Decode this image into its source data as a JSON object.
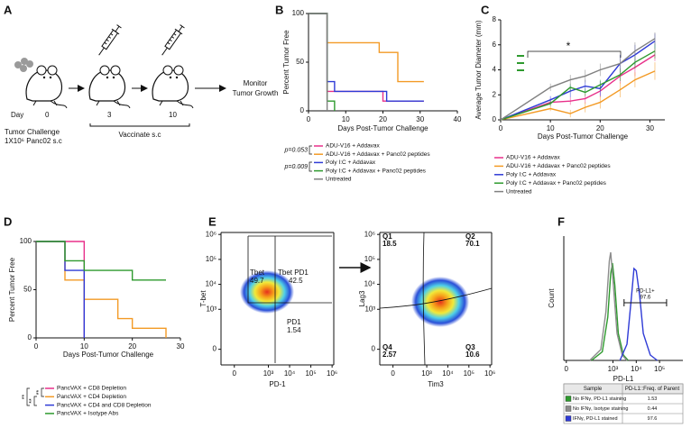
{
  "panel_labels": [
    "A",
    "B",
    "C",
    "D",
    "E",
    "F"
  ],
  "panel_a": {
    "day_label": "Day",
    "days": [
      0,
      3,
      10
    ],
    "challenge": [
      "Tumor Challenge",
      "1X10⁶ Panc02 s.c"
    ],
    "vaccinate": "Vaccinate s.c",
    "monitor": [
      "Monitor",
      "Tumor Growth"
    ]
  },
  "chart_data": [
    {
      "type": "line",
      "ylabel": "Percent Tumor Free",
      "xlabel": "Days Post-Tumor Challenge",
      "xlim": [
        0,
        40
      ],
      "xticks": [
        0,
        10,
        20,
        30,
        40
      ],
      "ylim": [
        0,
        100
      ],
      "yticks": [
        0,
        50,
        100
      ],
      "series": [
        {
          "name": "ADU-V16 + Addavax",
          "color": "#e8308a",
          "x": [
            0,
            5,
            5,
            20,
            20,
            31
          ],
          "values": [
            100,
            100,
            20,
            20,
            10,
            10
          ]
        },
        {
          "name": "ADU-V16 + Addavax + Panc02 peptides",
          "color": "#f39a25",
          "x": [
            0,
            5,
            5,
            19,
            19,
            24,
            24,
            31
          ],
          "values": [
            100,
            100,
            70,
            70,
            60,
            60,
            30,
            30
          ]
        },
        {
          "name": "Poly I:C + Addavax",
          "color": "#2f3bd6",
          "x": [
            0,
            5,
            5,
            7,
            7,
            21,
            21,
            31
          ],
          "values": [
            100,
            100,
            30,
            30,
            20,
            20,
            10,
            10
          ]
        },
        {
          "name": "Poly I:C + Addavax + Panc02 peptides",
          "color": "#2e9a2e",
          "x": [
            0,
            5,
            5,
            7,
            7
          ],
          "values": [
            100,
            100,
            10,
            10,
            0
          ]
        },
        {
          "name": "Untreated",
          "color": "#808080",
          "x": [
            0,
            5,
            5
          ],
          "values": [
            100,
            100,
            0
          ]
        }
      ],
      "annotations": [
        "p=0.053",
        "p=0.009"
      ]
    },
    {
      "type": "line",
      "ylabel": "Average Tumor Diameter (mm)",
      "xlabel": "Days Post-Tumor Challenge",
      "xlim": [
        0,
        33
      ],
      "xticks": [
        0,
        10,
        20,
        30
      ],
      "ylim": [
        0,
        8
      ],
      "yticks": [
        0,
        2,
        4,
        6,
        8
      ],
      "x": [
        0,
        10,
        14,
        17,
        20,
        24,
        27,
        31
      ],
      "series": [
        {
          "name": "ADU-V16 + Addavax",
          "color": "#e8308a",
          "values": [
            0,
            1.4,
            1.5,
            1.7,
            2.3,
            3.5,
            4.2,
            5.2
          ],
          "errors": [
            0,
            0.3,
            0.3,
            0.4,
            0.5,
            0.6,
            0.7,
            0.5
          ]
        },
        {
          "name": "ADU-V16 + Addavax + Panc02 peptides",
          "color": "#f39a25",
          "values": [
            0,
            0.9,
            0.5,
            1.0,
            1.4,
            2.4,
            3.2,
            3.9
          ],
          "errors": [
            0,
            0.2,
            0.3,
            0.4,
            0.5,
            0.6,
            0.6,
            0.7
          ]
        },
        {
          "name": "Poly I:C + Addavax",
          "color": "#2f3bd6",
          "values": [
            0,
            1.6,
            2.3,
            2.7,
            2.5,
            4.5,
            5.2,
            6.3
          ],
          "errors": [
            0,
            0.3,
            0.5,
            0.5,
            0.6,
            0.7,
            0.8,
            0.6
          ]
        },
        {
          "name": "Poly I:C + Addavax + Panc02 peptides",
          "color": "#2e9a2e",
          "values": [
            0,
            1.3,
            2.6,
            2.2,
            2.8,
            3.6,
            4.6,
            5.5
          ],
          "errors": [
            0,
            0.2,
            0.3,
            0.3,
            0.4,
            0.5,
            0.5,
            0.6
          ]
        },
        {
          "name": "Untreated",
          "color": "#808080",
          "values": [
            0,
            2.6,
            3.2,
            3.5,
            4.0,
            4.5,
            5.5,
            6.5
          ],
          "errors": [
            0,
            0.3,
            0.4,
            0.5,
            0.5,
            0.6,
            0.7,
            0.5
          ]
        }
      ],
      "annotations": [
        "*"
      ]
    },
    {
      "type": "line",
      "ylabel": "Percent Tumor Free",
      "xlabel": "Days Post-Tumor Challenge",
      "xlim": [
        0,
        30
      ],
      "xticks": [
        0,
        10,
        20,
        30
      ],
      "ylim": [
        0,
        100
      ],
      "yticks": [
        0,
        50,
        100
      ],
      "series": [
        {
          "name": "PancVAX + CD8 Depletion",
          "color": "#e8308a",
          "x": [
            0,
            10,
            10
          ],
          "values": [
            100,
            100,
            0
          ]
        },
        {
          "name": "PancVAX + CD4 Depletion",
          "color": "#f39a25",
          "x": [
            0,
            6,
            6,
            10,
            10,
            17,
            17,
            20,
            20,
            27,
            27
          ],
          "values": [
            100,
            100,
            60,
            60,
            40,
            40,
            20,
            20,
            10,
            10,
            0
          ]
        },
        {
          "name": "PancVAX + CD4 and CD8 Depletion",
          "color": "#2f3bd6",
          "x": [
            0,
            6,
            6,
            10,
            10
          ],
          "values": [
            100,
            100,
            70,
            70,
            0
          ]
        },
        {
          "name": "PancVAX + Isotype Abs",
          "color": "#2e9a2e",
          "x": [
            0,
            6,
            6,
            10,
            10,
            20,
            20,
            27
          ],
          "values": [
            100,
            100,
            80,
            80,
            70,
            70,
            60,
            60
          ]
        }
      ],
      "annotations": [
        "**",
        "**",
        "**"
      ]
    },
    {
      "type": "density",
      "ylabel": "T-bet",
      "xlabel": "PD-1",
      "xscale": "biex",
      "yscale": "biex",
      "xlim": [
        -100,
        1200000
      ],
      "ylim": [
        -100,
        1200000
      ],
      "xticks": [
        {
          "value": 0,
          "label": "0"
        },
        {
          "value": 1000,
          "label": "10³"
        },
        {
          "value": 10000,
          "label": "10⁴"
        },
        {
          "value": 100000,
          "label": "10⁵"
        },
        {
          "value": 1000000,
          "label": "10⁶"
        }
      ],
      "yticks": [
        {
          "value": 0,
          "label": "0"
        },
        {
          "value": 1000,
          "label": "10³"
        },
        {
          "value": 10000,
          "label": "10⁴"
        },
        {
          "value": 100000,
          "label": "10⁵"
        },
        {
          "value": 1000000,
          "label": "10⁶"
        }
      ],
      "annotations": [
        {
          "label": "Tbet",
          "value": 49.7
        },
        {
          "label": "Tbet PD1",
          "value": 42.5
        },
        {
          "label": "PD1",
          "value": 1.54
        }
      ]
    },
    {
      "type": "density",
      "ylabel": "Lag3",
      "xlabel": "Tim3",
      "xscale": "biex",
      "yscale": "biex",
      "xlim": [
        -100,
        1200000
      ],
      "ylim": [
        -100,
        1200000
      ],
      "xticks": [
        {
          "value": 0,
          "label": "0"
        },
        {
          "value": 1000,
          "label": "10³"
        },
        {
          "value": 10000,
          "label": "10⁴"
        },
        {
          "value": 100000,
          "label": "10⁵"
        },
        {
          "value": 1000000,
          "label": "10⁶"
        }
      ],
      "yticks": [
        {
          "value": 0,
          "label": "0"
        },
        {
          "value": 1000,
          "label": "10³"
        },
        {
          "value": 10000,
          "label": "10⁴"
        },
        {
          "value": 100000,
          "label": "10⁵"
        },
        {
          "value": 1000000,
          "label": "10⁶"
        }
      ],
      "annotations": [
        {
          "label": "Q1",
          "value": 18.5
        },
        {
          "label": "Q2",
          "value": 70.1
        },
        {
          "label": "Q3",
          "value": 10.6
        },
        {
          "label": "Q4",
          "value": 2.57
        }
      ]
    },
    {
      "type": "line",
      "ylabel": "Count",
      "xlabel": "PD-L1",
      "xscale": "biex",
      "xlim": [
        -5,
        1000000
      ],
      "ylim": [
        0,
        115
      ],
      "xticks": [
        {
          "value": 0,
          "label": "0"
        },
        {
          "value": 1000,
          "label": "10³"
        },
        {
          "value": 10000,
          "label": "10⁴"
        },
        {
          "value": 100000,
          "label": "10⁵"
        }
      ],
      "series": [
        {
          "color": "#2e9a2e",
          "x": [
            120,
            350,
            600,
            800,
            950,
            1200,
            1700,
            2800,
            4500
          ],
          "values": [
            0,
            8,
            40,
            80,
            90,
            70,
            25,
            5,
            0
          ]
        },
        {
          "color": "#8c8c8c",
          "x": [
            100,
            300,
            500,
            700,
            800,
            1000,
            1500,
            2500,
            4000
          ],
          "values": [
            0,
            10,
            45,
            92,
            100,
            75,
            25,
            5,
            0
          ]
        },
        {
          "color": "#2f3bd6",
          "x": [
            2000,
            4000,
            6000,
            8000,
            10000,
            14000,
            20000,
            40000,
            80000
          ],
          "values": [
            0,
            15,
            55,
            85,
            83,
            60,
            25,
            5,
            0
          ]
        }
      ],
      "annotations": [
        {
          "label": "PD-L1+",
          "value": 97.6
        }
      ],
      "gate_range": [
        3000,
        200000
      ],
      "table": {
        "columns": [
          "Sample",
          "PD-L1::Freq. of Parent"
        ],
        "rows": [
          [
            "No IFNγ, PD-L1 staining",
            1.53
          ],
          [
            "No IFNγ, Isotype staining",
            0.44
          ],
          [
            "IFNγ, PD-L1 stained",
            97.6
          ]
        ]
      }
    }
  ]
}
